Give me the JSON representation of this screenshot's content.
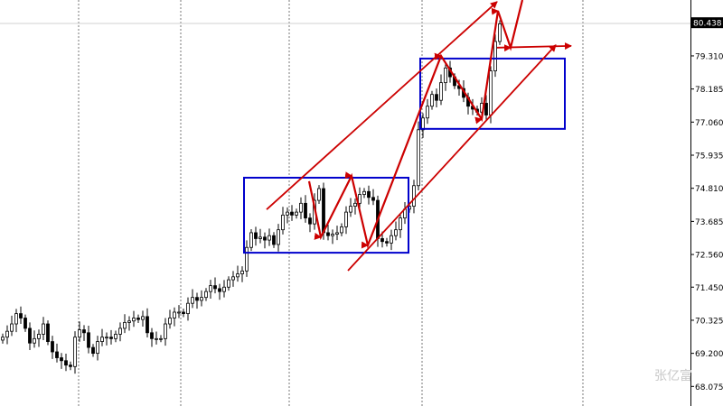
{
  "chart_data": {
    "type": "candlestick",
    "ylim": [
      67.41,
      81.21
    ],
    "y_ticks": [
      "80.438",
      "79.310",
      "78.185",
      "77.060",
      "75.935",
      "74.810",
      "73.685",
      "72.560",
      "71.450",
      "70.325",
      "69.200",
      "68.075"
    ],
    "current_price": "80.438",
    "grid": "vertical dotted",
    "time_grid_index": [
      16.8,
      39.4,
      63.4,
      92.8,
      128.4
    ],
    "close": [
      69.75,
      69.95,
      70.2,
      70.55,
      70.4,
      70.05,
      69.55,
      69.7,
      69.85,
      70.2,
      69.6,
      69.25,
      69.05,
      68.95,
      68.8,
      68.75,
      69.75,
      70.0,
      69.9,
      69.4,
      69.2,
      69.6,
      69.75,
      69.75,
      69.7,
      69.85,
      70.05,
      70.25,
      70.3,
      70.4,
      70.35,
      70.45,
      69.9,
      69.7,
      69.7,
      69.7,
      70.2,
      70.4,
      70.6,
      70.6,
      70.55,
      70.9,
      71.1,
      71.0,
      71.1,
      71.3,
      71.5,
      71.4,
      71.3,
      71.45,
      71.7,
      71.8,
      71.9,
      72.0,
      72.8,
      73.3,
      73.1,
      73.15,
      73.05,
      73.2,
      72.9,
      73.4,
      73.9,
      74.0,
      73.9,
      74.0,
      74.3,
      73.8,
      73.6,
      74.4,
      74.8,
      73.3,
      73.2,
      73.25,
      73.3,
      73.5,
      74.0,
      74.2,
      74.3,
      74.6,
      74.7,
      74.5,
      74.4,
      73.1,
      73.0,
      72.95,
      73.2,
      73.4,
      73.8,
      74.1,
      74.2,
      74.9,
      76.8,
      77.2,
      77.6,
      78.0,
      77.8,
      78.4,
      78.9,
      78.6,
      78.3,
      78.2,
      77.9,
      77.6,
      77.5,
      77.4,
      77.7,
      77.3,
      78.8,
      79.8,
      80.4
    ],
    "annotations": {
      "rectangles": [
        {
          "from": [
            53.4,
            75.17
          ],
          "to": [
            89.8,
            72.62
          ],
          "color": "#0000cc"
        },
        {
          "from": [
            92.4,
            79.22
          ],
          "to": [
            124.4,
            76.83
          ],
          "color": "#0000cc"
        }
      ],
      "trend_lines": [
        {
          "points": [
            [
              58.4,
              74.09
            ],
            [
              109.4,
              81.15
            ]
          ],
          "arrow": true
        },
        {
          "points": [
            [
              76.4,
              72.01
            ],
            [
              122.4,
              79.68
            ]
          ],
          "arrow": true
        },
        {
          "points": [
            [
              109.4,
              79.59
            ],
            [
              125.8,
              79.65
            ]
          ],
          "arrow": true
        }
      ],
      "zigzag": [
        [
          67.8,
          75.05
        ],
        [
          70.4,
          73.15
        ],
        [
          77.2,
          75.23
        ],
        [
          80.8,
          72.87
        ],
        [
          97.0,
          79.31
        ],
        [
          106.0,
          77.16
        ],
        [
          109.6,
          80.84
        ],
        [
          112.4,
          79.59
        ],
        [
          115.0,
          81.21
        ]
      ],
      "line_color": "#cc0000"
    }
  },
  "watermark": "张亿富"
}
